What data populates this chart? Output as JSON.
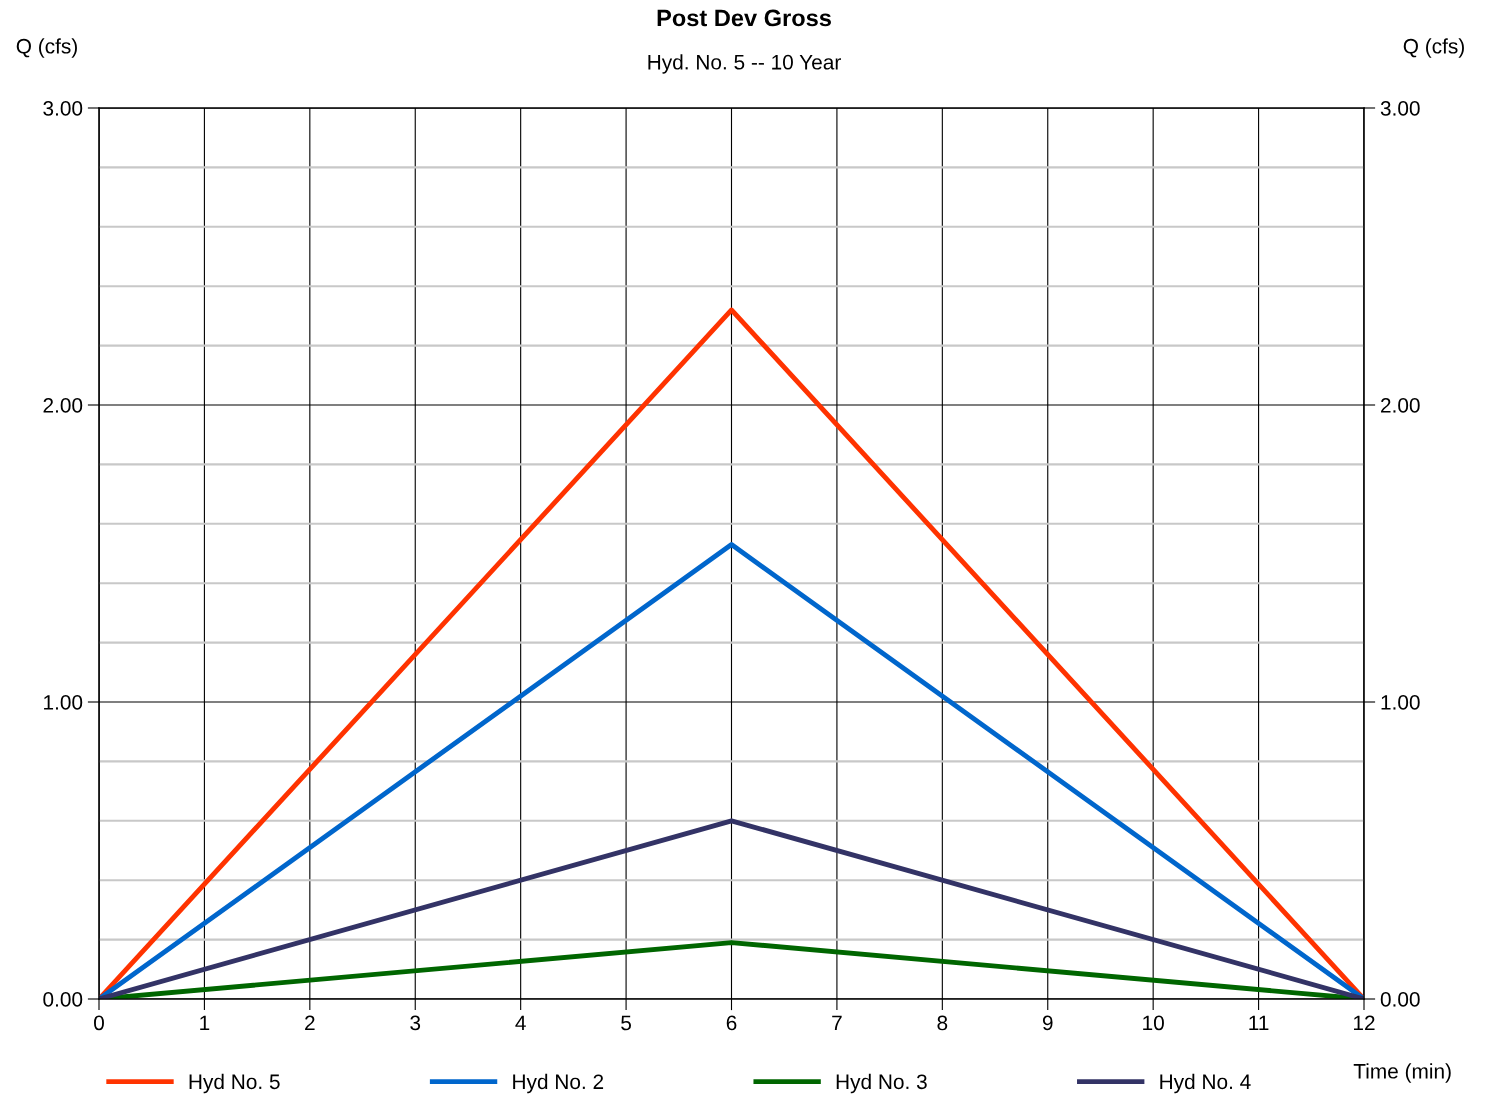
{
  "chart_data": {
    "type": "line",
    "title": "Post Dev Gross",
    "subtitle": "Hyd. No. 5 -- 10 Year",
    "xlabel": "Time (min)",
    "ylabel": "Q (cfs)",
    "y2label": "Q (cfs)",
    "x": [
      0,
      6,
      12
    ],
    "series": [
      {
        "name": "Hyd No. 5",
        "color": "#ff3300",
        "values": [
          0,
          2.32,
          0
        ]
      },
      {
        "name": "Hyd No. 2",
        "color": "#0066cc",
        "values": [
          0,
          1.53,
          0
        ]
      },
      {
        "name": "Hyd No. 3",
        "color": "#006600",
        "values": [
          0,
          0.19,
          0
        ]
      },
      {
        "name": "Hyd No. 4",
        "color": "#333366",
        "values": [
          0,
          0.6,
          0
        ]
      }
    ],
    "xlim": [
      0,
      12
    ],
    "xticks": [
      0,
      1,
      2,
      3,
      4,
      5,
      6,
      7,
      8,
      9,
      10,
      11,
      12
    ],
    "ylim": [
      0,
      3
    ],
    "yticks": [
      {
        "value": 0,
        "label": "0.00"
      },
      {
        "value": 0.2,
        "label": null
      },
      {
        "value": 0.4,
        "label": null
      },
      {
        "value": 0.6,
        "label": null
      },
      {
        "value": 0.8,
        "label": null
      },
      {
        "value": 1,
        "label": "1.00"
      },
      {
        "value": 1.2,
        "label": null
      },
      {
        "value": 1.4,
        "label": null
      },
      {
        "value": 1.6,
        "label": null
      },
      {
        "value": 1.8,
        "label": null
      },
      {
        "value": 2,
        "label": "2.00"
      },
      {
        "value": 2.2,
        "label": null
      },
      {
        "value": 2.4,
        "label": null
      },
      {
        "value": 2.6,
        "label": null
      },
      {
        "value": 2.8,
        "label": null
      },
      {
        "value": 3,
        "label": "3.00"
      }
    ],
    "y2lim": [
      0,
      3
    ],
    "y2ticks": [
      {
        "value": 0,
        "label": "0.00"
      },
      {
        "value": 1,
        "label": "1.00"
      },
      {
        "value": 2,
        "label": "2.00"
      },
      {
        "value": 3,
        "label": "3.00"
      }
    ],
    "grid": true,
    "legend": "bottom",
    "marker": "none",
    "line_style": "solid"
  }
}
